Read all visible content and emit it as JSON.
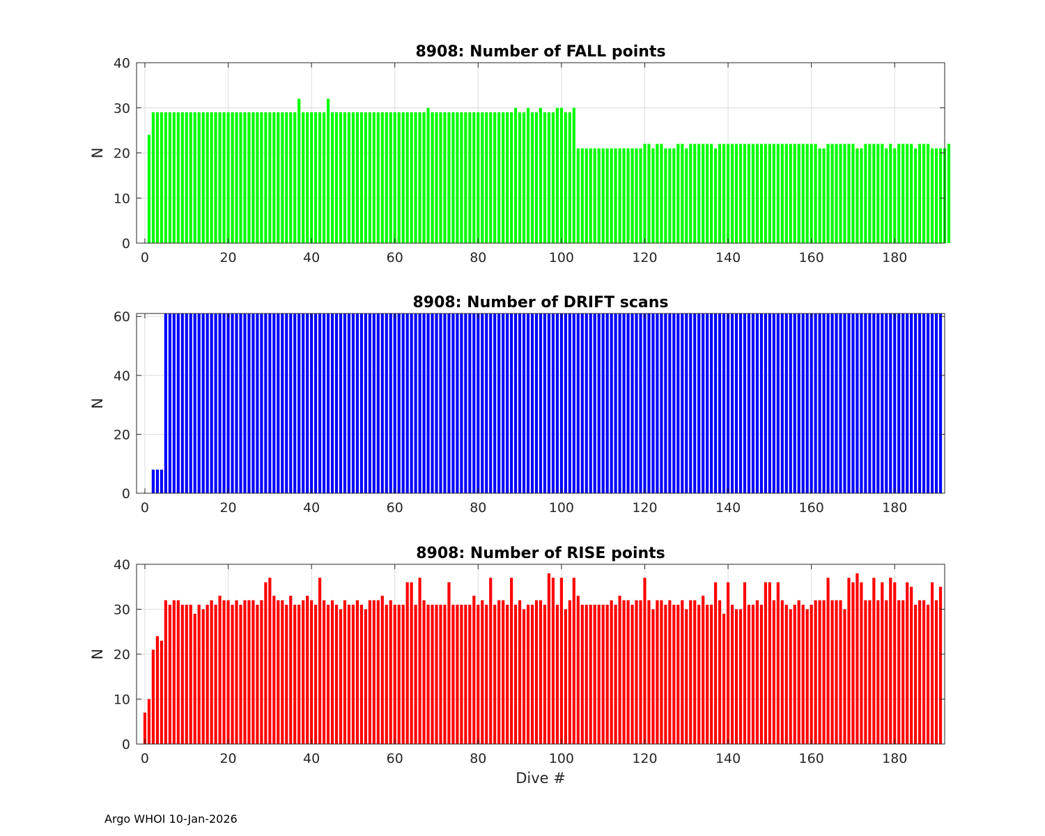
{
  "footer": "Argo WHOI 10-Jan-2026",
  "chart_data": [
    {
      "type": "bar",
      "title": "8908: Number of FALL points",
      "xlabel": "",
      "ylabel": "N",
      "xlim": [
        -2,
        192
      ],
      "ylim": [
        0,
        40
      ],
      "xticks": [
        0,
        20,
        40,
        60,
        80,
        100,
        120,
        140,
        160,
        180
      ],
      "yticks": [
        0,
        10,
        20,
        30,
        40
      ],
      "grid": true,
      "color": "#00ff00",
      "x_start": 1,
      "values": [
        24,
        29,
        29,
        29,
        29,
        29,
        29,
        29,
        29,
        29,
        29,
        29,
        29,
        29,
        29,
        29,
        29,
        29,
        29,
        29,
        29,
        29,
        29,
        29,
        29,
        29,
        29,
        29,
        29,
        29,
        29,
        29,
        29,
        29,
        29,
        29,
        32,
        29,
        29,
        29,
        29,
        29,
        29,
        32,
        29,
        29,
        29,
        29,
        29,
        29,
        29,
        29,
        29,
        29,
        29,
        29,
        29,
        29,
        29,
        29,
        29,
        29,
        29,
        29,
        29,
        29,
        29,
        30,
        29,
        29,
        29,
        29,
        29,
        29,
        29,
        29,
        29,
        29,
        29,
        29,
        29,
        29,
        29,
        29,
        29,
        29,
        29,
        29,
        30,
        29,
        29,
        30,
        29,
        29,
        30,
        29,
        29,
        29,
        30,
        30,
        29,
        29,
        30,
        21,
        21,
        21,
        21,
        21,
        21,
        21,
        21,
        21,
        21,
        21,
        21,
        21,
        21,
        21,
        21,
        22,
        22,
        21,
        22,
        22,
        21,
        21,
        21,
        22,
        22,
        21,
        22,
        22,
        22,
        22,
        22,
        22,
        21,
        22,
        22,
        22,
        22,
        22,
        22,
        22,
        22,
        22,
        22,
        22,
        22,
        22,
        22,
        22,
        22,
        22,
        22,
        22,
        22,
        22,
        22,
        22,
        22,
        21,
        21,
        22,
        22,
        22,
        22,
        22,
        22,
        22,
        21,
        21,
        22,
        22,
        22,
        22,
        22,
        21,
        22,
        21,
        22,
        22,
        22,
        22,
        21,
        22,
        22,
        22,
        21,
        21,
        21,
        21,
        22
      ]
    },
    {
      "type": "bar",
      "title": "8908: Number of DRIFT scans",
      "xlabel": "",
      "ylabel": "N",
      "xlim": [
        -2,
        192
      ],
      "ylim": [
        0,
        61
      ],
      "xticks": [
        0,
        20,
        40,
        60,
        80,
        100,
        120,
        140,
        160,
        180
      ],
      "yticks": [
        0,
        20,
        40,
        60
      ],
      "grid": true,
      "color": "#0000ff",
      "x_start": 2,
      "values": [
        8,
        8,
        8,
        61,
        61,
        61,
        61,
        61,
        61,
        61,
        61,
        61,
        61,
        61,
        61,
        61,
        61,
        61,
        61,
        61,
        61,
        61,
        61,
        61,
        61,
        61,
        61,
        61,
        61,
        61,
        61,
        61,
        61,
        61,
        61,
        61,
        61,
        61,
        61,
        61,
        61,
        61,
        61,
        61,
        61,
        61,
        61,
        61,
        61,
        61,
        61,
        61,
        61,
        61,
        61,
        61,
        61,
        61,
        61,
        61,
        61,
        61,
        61,
        61,
        61,
        61,
        61,
        61,
        61,
        61,
        61,
        61,
        61,
        61,
        61,
        61,
        61,
        61,
        61,
        61,
        61,
        61,
        61,
        61,
        61,
        61,
        61,
        61,
        61,
        61,
        61,
        61,
        61,
        61,
        61,
        61,
        61,
        61,
        61,
        61,
        61,
        61,
        61,
        61,
        61,
        61,
        61,
        61,
        61,
        61,
        61,
        61,
        61,
        61,
        61,
        61,
        61,
        61,
        61,
        61,
        61,
        61,
        61,
        61,
        61,
        61,
        61,
        61,
        61,
        61,
        61,
        61,
        61,
        61,
        61,
        61,
        61,
        61,
        61,
        61,
        61,
        61,
        61,
        61,
        61,
        61,
        61,
        61,
        61,
        61,
        61,
        61,
        61,
        61,
        61,
        61,
        61,
        61,
        61,
        61,
        61,
        61,
        61,
        61,
        61,
        61,
        61,
        61,
        61,
        61,
        61,
        61,
        61,
        61,
        61,
        61,
        61,
        61,
        61,
        61,
        61,
        61,
        61,
        61,
        61,
        61,
        61,
        61,
        61,
        61
      ]
    },
    {
      "type": "bar",
      "title": "8908: Number of RISE points",
      "xlabel": "Dive #",
      "ylabel": "N",
      "xlim": [
        -2,
        192
      ],
      "ylim": [
        0,
        40
      ],
      "xticks": [
        0,
        20,
        40,
        60,
        80,
        100,
        120,
        140,
        160,
        180
      ],
      "yticks": [
        0,
        10,
        20,
        30,
        40
      ],
      "grid": true,
      "color": "#ff0000",
      "x_start": 0,
      "values": [
        7,
        10,
        21,
        24,
        23,
        32,
        31,
        32,
        32,
        31,
        31,
        31,
        29,
        31,
        30,
        31,
        32,
        31,
        33,
        32,
        32,
        31,
        32,
        31,
        32,
        32,
        32,
        31,
        32,
        36,
        37,
        33,
        32,
        32,
        31,
        33,
        31,
        31,
        32,
        33,
        32,
        31,
        37,
        32,
        31,
        32,
        31,
        30,
        32,
        31,
        31,
        32,
        31,
        30,
        32,
        32,
        32,
        33,
        31,
        32,
        31,
        31,
        31,
        36,
        36,
        31,
        37,
        32,
        31,
        31,
        31,
        31,
        31,
        36,
        31,
        31,
        31,
        31,
        31,
        33,
        31,
        32,
        31,
        37,
        31,
        32,
        32,
        31,
        37,
        31,
        32,
        30,
        31,
        31,
        32,
        32,
        31,
        38,
        37,
        31,
        37,
        30,
        32,
        37,
        33,
        31,
        31,
        31,
        31,
        31,
        31,
        31,
        32,
        31,
        33,
        32,
        32,
        31,
        32,
        32,
        37,
        32,
        30,
        32,
        32,
        31,
        32,
        31,
        31,
        32,
        30,
        32,
        32,
        31,
        33,
        31,
        31,
        36,
        32,
        29,
        36,
        31,
        30,
        30,
        36,
        31,
        31,
        32,
        31,
        36,
        36,
        32,
        36,
        32,
        31,
        30,
        31,
        32,
        31,
        30,
        31,
        32,
        32,
        32,
        37,
        32,
        32,
        32,
        30,
        37,
        36,
        38,
        36,
        32,
        32,
        37,
        32,
        36,
        32,
        37,
        36,
        32,
        32,
        36,
        35,
        31,
        32,
        32,
        31,
        36,
        32,
        35
      ]
    }
  ]
}
